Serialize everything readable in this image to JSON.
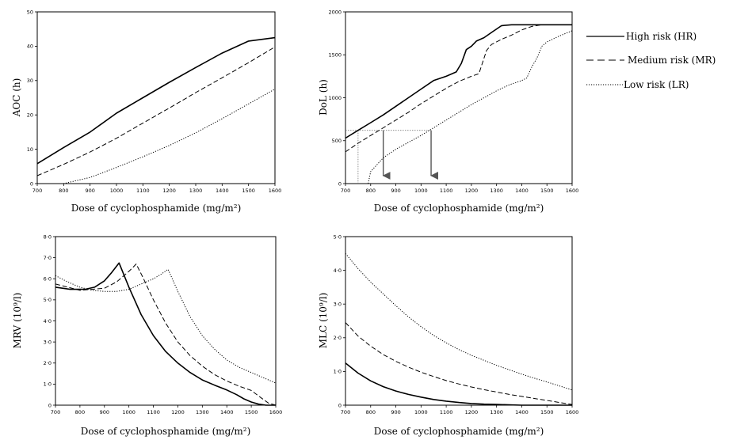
{
  "series_styles": [
    {
      "name": "High risk (HR)",
      "dash": "none",
      "width": 1.6
    },
    {
      "name": "Medium risk (MR)",
      "dash": "6,3",
      "width": 1.0
    },
    {
      "name": "Low risk (LR)",
      "dash": "1.2,1.8",
      "width": 1.0
    }
  ],
  "legend": {
    "placement": "right of top-right panel",
    "entries": [
      "High risk (HR)",
      "Medium risk (MR)",
      "Low risk (LR)"
    ]
  },
  "chart_data": [
    {
      "type": "line",
      "xlabel": "Dose of cyclophosphamide (mg/m²)",
      "ylabel": "AOC (h)",
      "xlim": [
        700,
        1600
      ],
      "ylim": [
        0,
        50
      ],
      "xticks": [
        700,
        800,
        900,
        1000,
        1100,
        1200,
        1300,
        1400,
        1500,
        1600
      ],
      "yticks": [
        0,
        10,
        20,
        30,
        40,
        50
      ],
      "ytick_labels": [
        "0",
        "10",
        "20",
        "30",
        "40",
        "50"
      ],
      "x": [
        700,
        800,
        900,
        1000,
        1100,
        1200,
        1300,
        1400,
        1500,
        1600
      ],
      "series": [
        {
          "name": "High risk (HR)",
          "values": [
            5.8,
            10.5,
            15.0,
            20.5,
            25.0,
            29.5,
            33.8,
            38.0,
            41.5,
            42.5
          ]
        },
        {
          "name": "Medium risk (MR)",
          "values": [
            2.3,
            5.6,
            9.2,
            13.2,
            17.6,
            22.0,
            26.5,
            30.8,
            35.2,
            39.8
          ]
        },
        {
          "name": "Low risk (LR)",
          "values": [
            0.0,
            0.0,
            1.8,
            4.7,
            7.8,
            11.1,
            14.8,
            18.9,
            23.2,
            27.5
          ]
        }
      ]
    },
    {
      "type": "line",
      "xlabel": "Dose of cyclophosphamide (mg/m²)",
      "ylabel": "DoL (h)",
      "xlim": [
        700,
        1600
      ],
      "ylim": [
        0,
        2000
      ],
      "xticks": [
        700,
        800,
        900,
        1000,
        1100,
        1200,
        1300,
        1400,
        1500,
        1600
      ],
      "yticks": [
        0,
        500,
        1000,
        1500,
        2000
      ],
      "ytick_labels": [
        "0",
        "500",
        "1000",
        "1500",
        "2000"
      ],
      "series": [
        {
          "name": "High risk (HR)",
          "x": [
            700,
            750,
            800,
            850,
            900,
            950,
            1000,
            1050,
            1100,
            1140,
            1160,
            1180,
            1200,
            1220,
            1250,
            1280,
            1320,
            1360,
            1400,
            1600
          ],
          "values": [
            530,
            620,
            710,
            800,
            900,
            1000,
            1100,
            1200,
            1250,
            1300,
            1400,
            1560,
            1600,
            1660,
            1700,
            1760,
            1840,
            1850,
            1850,
            1850
          ]
        },
        {
          "name": "Medium risk (MR)",
          "x": [
            700,
            750,
            800,
            850,
            900,
            950,
            1000,
            1050,
            1100,
            1150,
            1200,
            1230,
            1260,
            1280,
            1320,
            1360,
            1400,
            1440,
            1480,
            1600
          ],
          "values": [
            370,
            470,
            560,
            650,
            740,
            830,
            930,
            1020,
            1110,
            1190,
            1250,
            1280,
            1550,
            1620,
            1680,
            1730,
            1790,
            1830,
            1850,
            1850
          ]
        },
        {
          "name": "Low risk (LR)",
          "x": [
            790,
            800,
            850,
            900,
            950,
            1000,
            1050,
            1100,
            1150,
            1200,
            1250,
            1300,
            1350,
            1400,
            1420,
            1440,
            1460,
            1480,
            1500,
            1550,
            1600
          ],
          "values": [
            0,
            140,
            300,
            400,
            480,
            560,
            650,
            740,
            830,
            920,
            1000,
            1080,
            1150,
            1200,
            1230,
            1360,
            1460,
            1600,
            1650,
            1720,
            1780
          ]
        }
      ],
      "annotations": {
        "dol_level": 620,
        "arrows_at_dose": [
          850,
          1040
        ],
        "vertical_drop_at_dose": 750
      }
    },
    {
      "type": "line",
      "xlabel": "Dose of cyclophosphamide (mg/m²)",
      "ylabel": "MRV (10⁹/l)",
      "xlim": [
        700,
        1600
      ],
      "ylim": [
        0,
        8
      ],
      "xticks": [
        700,
        800,
        900,
        1000,
        1100,
        1200,
        1300,
        1400,
        1500,
        1600
      ],
      "yticks": [
        0,
        1,
        2,
        3,
        4,
        5,
        6,
        7,
        8
      ],
      "ytick_labels": [
        "0",
        "1·0",
        "2·0",
        "3·0",
        "4·0",
        "5·0",
        "6·0",
        "7·0",
        "8·0"
      ],
      "series": [
        {
          "name": "High risk (HR)",
          "x": [
            700,
            760,
            820,
            860,
            900,
            930,
            960,
            1000,
            1050,
            1100,
            1150,
            1200,
            1250,
            1300,
            1350,
            1400,
            1440,
            1470,
            1500,
            1530,
            1560,
            1600
          ],
          "values": [
            5.6,
            5.5,
            5.5,
            5.6,
            5.9,
            6.3,
            6.75,
            5.6,
            4.3,
            3.3,
            2.55,
            2.0,
            1.55,
            1.2,
            0.95,
            0.72,
            0.5,
            0.3,
            0.15,
            0.05,
            0.0,
            0.0
          ]
        },
        {
          "name": "Medium risk (MR)",
          "x": [
            700,
            800,
            900,
            950,
            1000,
            1030,
            1060,
            1100,
            1150,
            1200,
            1250,
            1300,
            1350,
            1400,
            1450,
            1500,
            1540,
            1570,
            1600
          ],
          "values": [
            5.75,
            5.45,
            5.55,
            5.85,
            6.35,
            6.7,
            6.0,
            5.0,
            3.9,
            3.0,
            2.35,
            1.85,
            1.45,
            1.15,
            0.9,
            0.7,
            0.35,
            0.1,
            0.0
          ]
        },
        {
          "name": "Low risk (LR)",
          "x": [
            700,
            750,
            800,
            850,
            900,
            950,
            1000,
            1050,
            1100,
            1130,
            1160,
            1200,
            1250,
            1300,
            1350,
            1400,
            1450,
            1500,
            1550,
            1600
          ],
          "values": [
            6.15,
            5.85,
            5.6,
            5.45,
            5.4,
            5.4,
            5.5,
            5.75,
            6.0,
            6.2,
            6.45,
            5.4,
            4.2,
            3.3,
            2.65,
            2.15,
            1.8,
            1.55,
            1.3,
            1.05
          ]
        }
      ]
    },
    {
      "type": "line",
      "xlabel": "Dose of cyclophosphamide (mg/m²)",
      "ylabel": "MLC (10⁹/l)",
      "xlim": [
        700,
        1600
      ],
      "ylim": [
        0,
        5
      ],
      "xticks": [
        700,
        800,
        900,
        1000,
        1100,
        1200,
        1300,
        1400,
        1500,
        1600
      ],
      "yticks": [
        0,
        1,
        2,
        3,
        4,
        5
      ],
      "ytick_labels": [
        "0",
        "1·0",
        "2·0",
        "3·0",
        "4·0",
        "5·0"
      ],
      "x": [
        700,
        750,
        800,
        850,
        900,
        950,
        1000,
        1050,
        1100,
        1150,
        1200,
        1250,
        1300,
        1350,
        1400,
        1450,
        1500,
        1550,
        1600
      ],
      "series": [
        {
          "name": "High risk (HR)",
          "values": [
            1.25,
            0.95,
            0.72,
            0.55,
            0.42,
            0.32,
            0.24,
            0.17,
            0.12,
            0.08,
            0.05,
            0.03,
            0.02,
            0.01,
            0.0,
            0.0,
            0.0,
            0.0,
            0.0
          ]
        },
        {
          "name": "Medium risk (MR)",
          "values": [
            2.45,
            2.05,
            1.75,
            1.5,
            1.3,
            1.13,
            0.98,
            0.85,
            0.73,
            0.63,
            0.54,
            0.46,
            0.39,
            0.32,
            0.26,
            0.2,
            0.14,
            0.08,
            0.02
          ]
        },
        {
          "name": "Low risk (LR)",
          "values": [
            4.5,
            4.05,
            3.65,
            3.3,
            2.95,
            2.62,
            2.33,
            2.07,
            1.85,
            1.65,
            1.48,
            1.33,
            1.18,
            1.05,
            0.92,
            0.8,
            0.69,
            0.57,
            0.45
          ]
        }
      ]
    }
  ]
}
